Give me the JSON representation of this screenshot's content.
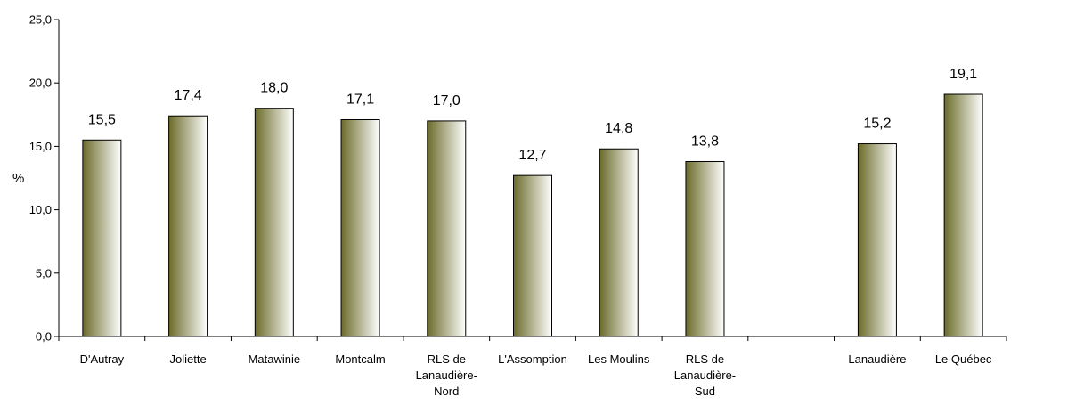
{
  "chart_data": {
    "type": "bar",
    "ylabel": "%",
    "ylim": [
      0,
      25
    ],
    "yticks": [
      "0,0",
      "5,0",
      "10,0",
      "15,0",
      "20,0",
      "25,0"
    ],
    "grid": false,
    "bar_color_dark": "#6b6b2a",
    "bar_color_light": "#ffffff",
    "categories": [
      [
        "D'Autray"
      ],
      [
        "Joliette"
      ],
      [
        "Matawinie"
      ],
      [
        "Montcalm"
      ],
      [
        "RLS de",
        "Lanaudière-",
        "Nord"
      ],
      [
        "L'Assomption"
      ],
      [
        "Les Moulins"
      ],
      [
        "RLS de",
        "Lanaudière-",
        "Sud"
      ],
      [],
      [
        "Lanaudière"
      ],
      [
        "Le Québec"
      ]
    ],
    "values": [
      15.5,
      17.4,
      18.0,
      17.1,
      17.0,
      12.7,
      14.8,
      13.8,
      null,
      15.2,
      19.1
    ],
    "value_labels": [
      "15,5",
      "17,4",
      "18,0",
      "17,1",
      "17,0",
      "12,7",
      "14,8",
      "13,8",
      "",
      "15,2",
      "19,1"
    ]
  }
}
